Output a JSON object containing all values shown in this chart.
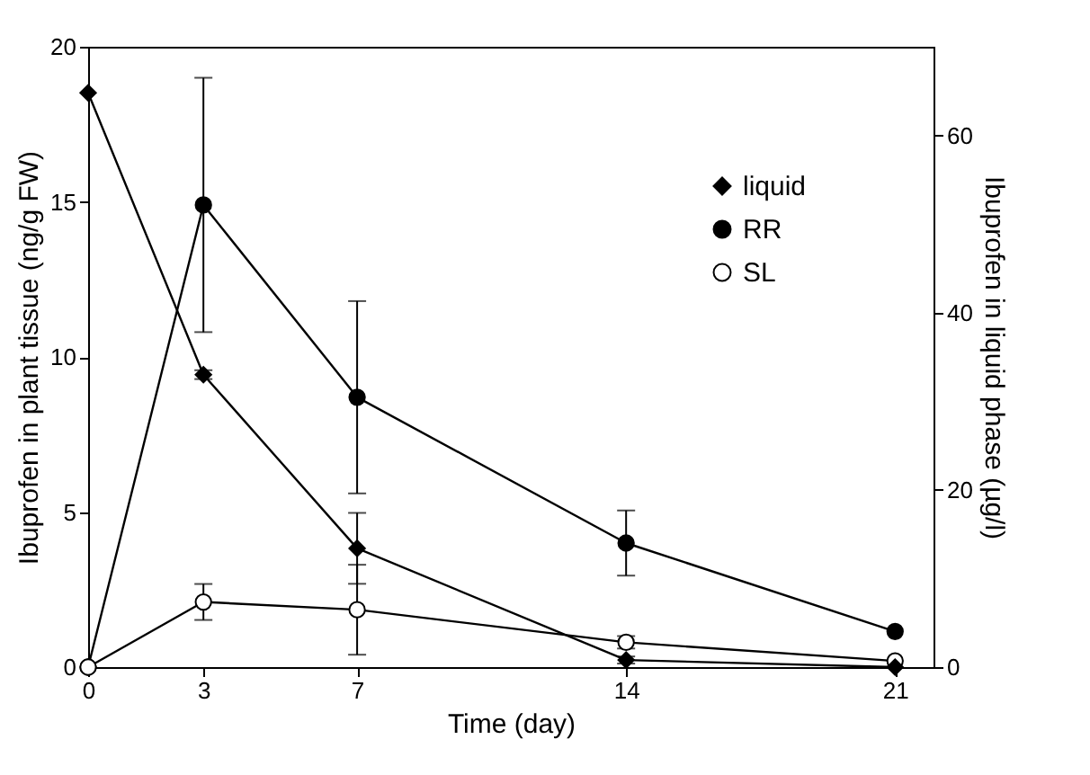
{
  "chart_data": {
    "type": "line",
    "xlabel": "Time (day)",
    "ylabel": "Ibuprofen in plant tissue (ng/g FW)",
    "y2label": "Ibuprofen in liquid phase (µg/l)",
    "x": [
      0,
      3,
      7,
      14,
      21
    ],
    "xlim": [
      0,
      22
    ],
    "xticks": [
      0,
      3,
      7,
      14,
      21
    ],
    "ylim": [
      0,
      20
    ],
    "yticks": [
      0,
      5,
      10,
      15,
      20
    ],
    "y2lim": [
      0,
      70
    ],
    "y2ticks": [
      0,
      20,
      40,
      60
    ],
    "legend": "top right",
    "series": [
      {
        "name": "liquid",
        "color": "#000000",
        "marker": "diamond",
        "axis": "y2",
        "values": [
          64.8,
          33.0,
          13.4,
          0.8,
          0
        ],
        "errors": [
          null,
          0.5,
          4.0,
          0.4,
          null
        ]
      },
      {
        "name": "RR",
        "color": "#000000",
        "marker": "circle",
        "values": [
          0,
          14.9,
          8.7,
          4.0,
          1.15
        ],
        "errors": [
          null,
          4.1,
          3.1,
          1.05,
          null
        ]
      },
      {
        "name": "SL",
        "color": "#ffffff",
        "marker": "circle",
        "values": [
          0,
          2.1,
          1.85,
          0.8,
          0.2
        ],
        "errors": [
          null,
          0.58,
          1.45,
          0.2,
          null
        ]
      }
    ]
  }
}
